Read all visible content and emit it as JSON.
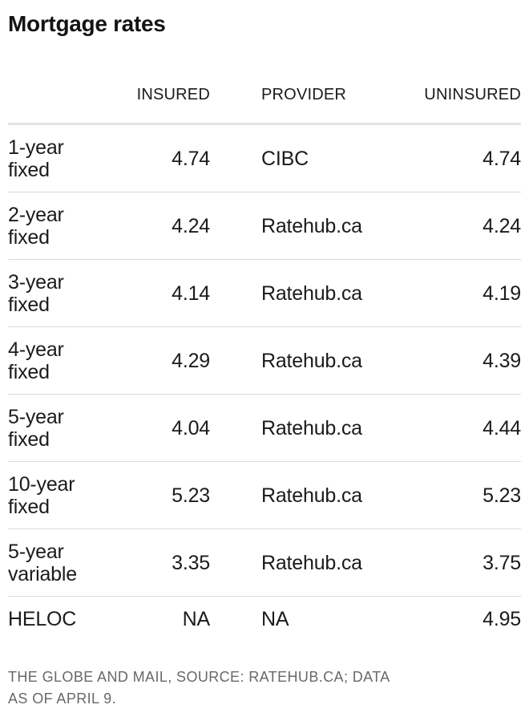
{
  "title": "Mortgage rates",
  "table": {
    "headers": {
      "term": "",
      "insured": "INSURED",
      "provider": "PROVIDER",
      "uninsured": "UNINSURED"
    },
    "rows": [
      {
        "term": "1-year\nfixed",
        "insured": "4.74",
        "provider": "CIBC",
        "uninsured": "4.74"
      },
      {
        "term": "2-year\nfixed",
        "insured": "4.24",
        "provider": "Ratehub.ca",
        "uninsured": "4.24"
      },
      {
        "term": "3-year\nfixed",
        "insured": "4.14",
        "provider": "Ratehub.ca",
        "uninsured": "4.19"
      },
      {
        "term": "4-year\nfixed",
        "insured": "4.29",
        "provider": "Ratehub.ca",
        "uninsured": "4.39"
      },
      {
        "term": "5-year\nfixed",
        "insured": "4.04",
        "provider": "Ratehub.ca",
        "uninsured": "4.44"
      },
      {
        "term": "10-year\nfixed",
        "insured": "5.23",
        "provider": "Ratehub.ca",
        "uninsured": "5.23"
      },
      {
        "term": "5-year\nvariable",
        "insured": "3.35",
        "provider": "Ratehub.ca",
        "uninsured": "3.75"
      },
      {
        "term": "HELOC",
        "insured": "NA",
        "provider": "NA",
        "uninsured": "4.95"
      }
    ]
  },
  "footer": {
    "credit": "THE GLOBE AND MAIL, SOURCE: RATEHUB.CA; DATA\nAS OF APRIL 9."
  },
  "colors": {
    "text": "#1b1b1b",
    "muted_text": "#66696b",
    "row_rule": "#d9d9d9",
    "header_rule": "#e3e3e3",
    "background": "#ffffff"
  },
  "chart_data": {
    "type": "table",
    "title": "Mortgage rates",
    "columns": [
      "",
      "INSURED",
      "PROVIDER",
      "UNINSURED"
    ],
    "rows": [
      [
        "1-year fixed",
        4.74,
        "CIBC",
        4.74
      ],
      [
        "2-year fixed",
        4.24,
        "Ratehub.ca",
        4.24
      ],
      [
        "3-year fixed",
        4.14,
        "Ratehub.ca",
        4.19
      ],
      [
        "4-year fixed",
        4.29,
        "Ratehub.ca",
        4.39
      ],
      [
        "5-year fixed",
        4.04,
        "Ratehub.ca",
        4.44
      ],
      [
        "10-year fixed",
        5.23,
        "Ratehub.ca",
        5.23
      ],
      [
        "5-year variable",
        3.35,
        "Ratehub.ca",
        3.75
      ],
      [
        "HELOC",
        "NA",
        "NA",
        4.95
      ]
    ],
    "source_note": "THE GLOBE AND MAIL, SOURCE: RATEHUB.CA; DATA AS OF APRIL 9.",
    "layout_hints": {
      "number_alignment": "right",
      "grid": "horizontal-rules-only",
      "legend": "none"
    }
  }
}
